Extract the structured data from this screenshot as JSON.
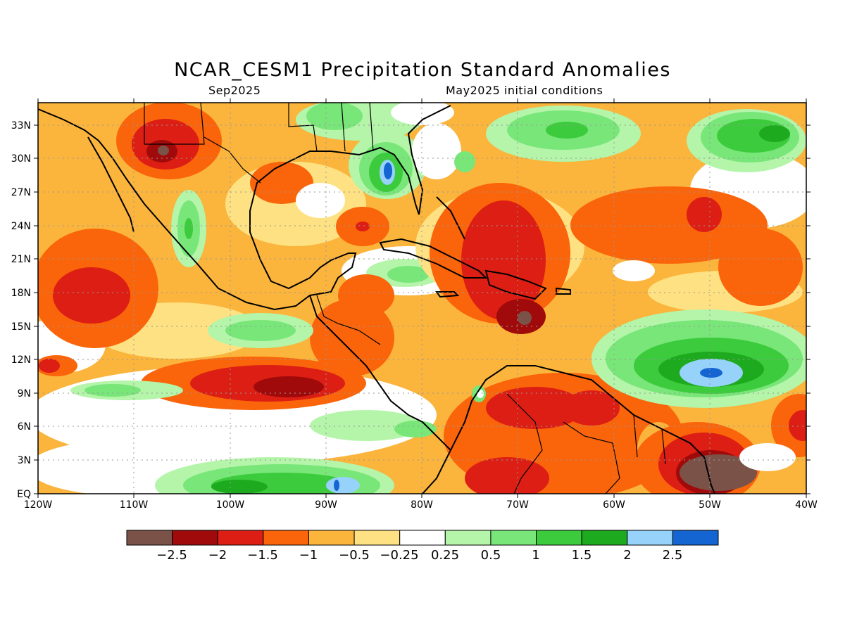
{
  "title": "NCAR_CESM1 Precipitation Standard Anomalies",
  "subtitle_left": "Sep2025",
  "subtitle_right": "May2025 initial conditions",
  "map": {
    "lon_range": [
      -120,
      -40
    ],
    "lat_range": [
      0,
      35
    ],
    "lon_ticks": [
      "120W",
      "110W",
      "100W",
      "90W",
      "80W",
      "70W",
      "60W",
      "50W",
      "40W"
    ],
    "lat_ticks": [
      "EQ",
      "3N",
      "6N",
      "9N",
      "12N",
      "15N",
      "18N",
      "21N",
      "24N",
      "27N",
      "30N",
      "33N"
    ],
    "grid": true
  },
  "colorbar": {
    "colors": [
      "#7a5248",
      "#a00a0a",
      "#dc1e14",
      "#fa640a",
      "#fbb43c",
      "#fee182",
      "#ffffff",
      "#b4f5aa",
      "#78e678",
      "#3ccb3c",
      "#1eaa1e",
      "#96d2fa",
      "#1464d2"
    ],
    "labels": [
      "−2.5",
      "−2",
      "−1.5",
      "−1",
      "−0.5",
      "−0.25",
      "0.25",
      "0.5",
      "1",
      "1.5",
      "2",
      "2.5"
    ]
  }
}
